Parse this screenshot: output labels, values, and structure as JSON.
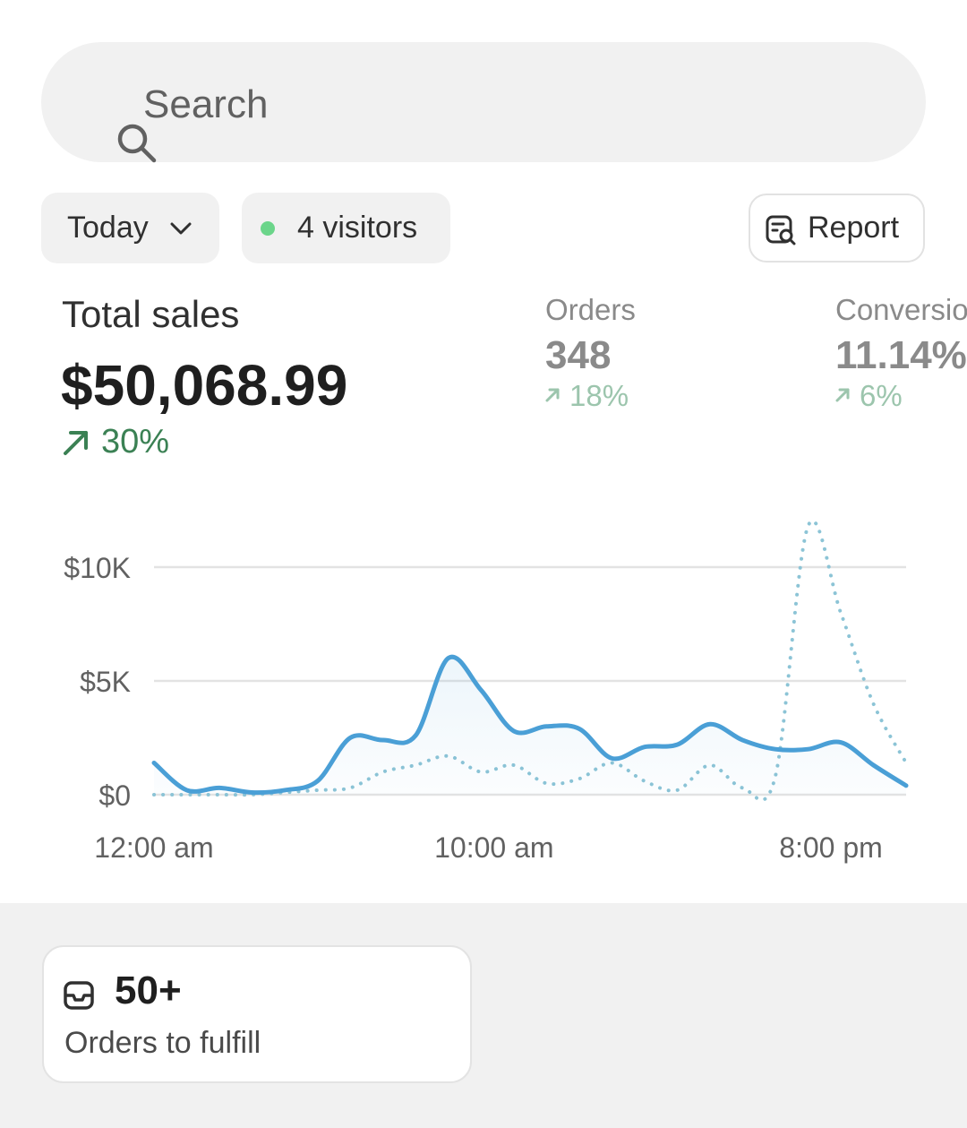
{
  "search": {
    "placeholder": "Search"
  },
  "filters": {
    "date_label": "Today",
    "visitors_label": "4 visitors",
    "visitors_dot_color": "#6bd58a",
    "report_label": "Report"
  },
  "metrics": {
    "total_sales": {
      "label": "Total sales",
      "value": "$50,068.99",
      "change": "30%"
    },
    "orders": {
      "label": "Orders",
      "value": "348",
      "change": "18%"
    },
    "conversion": {
      "label": "Conversion",
      "value": "11.14%",
      "change": "6%"
    }
  },
  "chart_data": {
    "type": "line",
    "x_tick_labels": [
      "12:00 am",
      "10:00 am",
      "8:00 pm"
    ],
    "y_tick_labels": [
      "$0",
      "$5K",
      "$10K"
    ],
    "ylim": [
      0,
      10000
    ],
    "grid": true,
    "series": [
      {
        "style": "solid",
        "color": "#4a9fd6",
        "x": [
          0,
          1,
          2,
          3,
          4,
          5,
          6,
          7,
          8,
          9,
          10,
          11,
          12,
          13,
          14,
          15,
          16,
          17,
          18,
          19,
          20,
          21,
          22,
          23
        ],
        "values": [
          1400,
          200,
          300,
          100,
          200,
          600,
          2500,
          2400,
          2600,
          6000,
          4600,
          2800,
          3000,
          2900,
          1600,
          2100,
          2200,
          3100,
          2400,
          2000,
          2000,
          2300,
          1300,
          400
        ]
      },
      {
        "style": "dotted",
        "color": "#8cc4d6",
        "x": [
          0,
          1,
          2,
          3,
          4,
          5,
          6,
          7,
          8,
          9,
          10,
          11,
          12,
          13,
          14,
          15,
          16,
          17,
          18,
          19,
          20,
          21,
          22,
          23
        ],
        "values": [
          0,
          0,
          0,
          0,
          100,
          200,
          300,
          1000,
          1300,
          1700,
          1000,
          1300,
          500,
          700,
          1400,
          600,
          200,
          1300,
          300,
          800,
          11800,
          8000,
          4000,
          1400
        ]
      }
    ]
  },
  "fulfill_card": {
    "value": "50+",
    "label": "Orders to fulfill"
  }
}
